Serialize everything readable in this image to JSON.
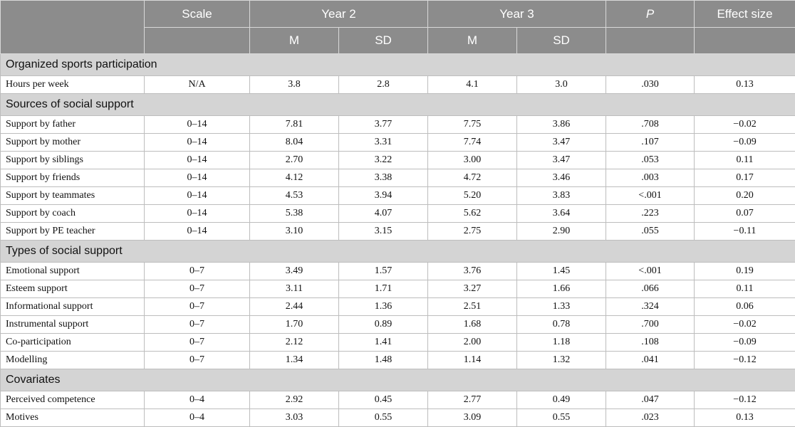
{
  "header": {
    "scale": "Scale",
    "year2": "Year 2",
    "year3": "Year 3",
    "p": "P",
    "effect_size": "Effect size",
    "m": "M",
    "sd": "SD"
  },
  "sections": [
    {
      "title": "Organized sports participation",
      "rows": [
        [
          "Hours per week",
          "N/A",
          "3.8",
          "2.8",
          "4.1",
          "3.0",
          ".030",
          "0.13"
        ]
      ]
    },
    {
      "title": "Sources of social support",
      "rows": [
        [
          "Support by father",
          "0–14",
          "7.81",
          "3.77",
          "7.75",
          "3.86",
          ".708",
          "−0.02"
        ],
        [
          "Support by mother",
          "0–14",
          "8.04",
          "3.31",
          "7.74",
          "3.47",
          ".107",
          "−0.09"
        ],
        [
          "Support by siblings",
          "0–14",
          "2.70",
          "3.22",
          "3.00",
          "3.47",
          ".053",
          "0.11"
        ],
        [
          "Support by friends",
          "0–14",
          "4.12",
          "3.38",
          "4.72",
          "3.46",
          ".003",
          "0.17"
        ],
        [
          "Support by teammates",
          "0–14",
          "4.53",
          "3.94",
          "5.20",
          "3.83",
          "<.001",
          "0.20"
        ],
        [
          "Support by coach",
          "0–14",
          "5.38",
          "4.07",
          "5.62",
          "3.64",
          ".223",
          "0.07"
        ],
        [
          "Support by PE teacher",
          "0–14",
          "3.10",
          "3.15",
          "2.75",
          "2.90",
          ".055",
          "−0.11"
        ]
      ]
    },
    {
      "title": "Types of social support",
      "rows": [
        [
          "Emotional support",
          "0–7",
          "3.49",
          "1.57",
          "3.76",
          "1.45",
          "<.001",
          "0.19"
        ],
        [
          "Esteem support",
          "0–7",
          "3.11",
          "1.71",
          "3.27",
          "1.66",
          ".066",
          "0.11"
        ],
        [
          "Informational support",
          "0–7",
          "2.44",
          "1.36",
          "2.51",
          "1.33",
          ".324",
          "0.06"
        ],
        [
          "Instrumental support",
          "0–7",
          "1.70",
          "0.89",
          "1.68",
          "0.78",
          ".700",
          "−0.02"
        ],
        [
          "Co-participation",
          "0–7",
          "2.12",
          "1.41",
          "2.00",
          "1.18",
          ".108",
          "−0.09"
        ],
        [
          "Modelling",
          "0–7",
          "1.34",
          "1.48",
          "1.14",
          "1.32",
          ".041",
          "−0.12"
        ]
      ]
    },
    {
      "title": "Covariates",
      "rows": [
        [
          "Perceived competence",
          "0–4",
          "2.92",
          "0.45",
          "2.77",
          "0.49",
          ".047",
          "−0.12"
        ],
        [
          "Motives",
          "0–4",
          "3.03",
          "0.55",
          "3.09",
          "0.55",
          ".023",
          "0.13"
        ]
      ]
    }
  ]
}
